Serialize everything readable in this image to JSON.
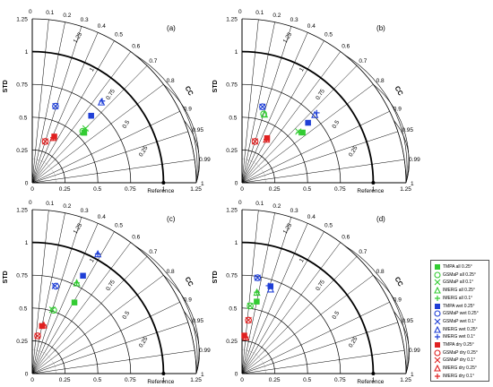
{
  "chart_data": [
    {
      "type": "scatter",
      "subtype": "taylor_diagram",
      "panel_label": "(a)",
      "ylabel": "STD",
      "angular_axis_label": "CC",
      "reference_label": "Reference",
      "points": [
        {
          "series": "TMPA all 0.25°",
          "std": 0.55,
          "cc": 0.72
        },
        {
          "series": "GSMaP all 0.25°",
          "std": 0.55,
          "cc": 0.7
        },
        {
          "series": "GSMaP all 0.1°",
          "std": 0.58,
          "cc": 0.7
        },
        {
          "series": "IMERG all 0.25°",
          "std": 0.55,
          "cc": 0.71
        },
        {
          "series": "IMERG all 0.1°",
          "std": 0.57,
          "cc": 0.71
        },
        {
          "series": "TMPA wet 0.25°",
          "std": 0.68,
          "cc": 0.66
        },
        {
          "series": "GSMaP wet 0.25°",
          "std": 0.61,
          "cc": 0.29
        },
        {
          "series": "GSMaP wet 0.1°",
          "std": 0.61,
          "cc": 0.29
        },
        {
          "series": "IMERG wet 0.25°",
          "std": 0.81,
          "cc": 0.65
        },
        {
          "series": "IMERG wet 0.1°",
          "std": 0.82,
          "cc": 0.65
        },
        {
          "series": "TMPA dry 0.25°",
          "std": 0.39,
          "cc": 0.43
        },
        {
          "series": "GSMaP dry 0.25°",
          "std": 0.33,
          "cc": 0.3
        },
        {
          "series": "GSMaP dry 0.1°",
          "std": 0.33,
          "cc": 0.3
        },
        {
          "series": "IMERG dry 0.25°",
          "std": 0.38,
          "cc": 0.42
        },
        {
          "series": "IMERG dry 0.1°",
          "std": 0.38,
          "cc": 0.42
        }
      ]
    },
    {
      "type": "scatter",
      "subtype": "taylor_diagram",
      "panel_label": "(b)",
      "ylabel": "STD",
      "angular_axis_label": "CC",
      "reference_label": "Reference",
      "points": [
        {
          "series": "TMPA all 0.25°",
          "std": 0.6,
          "cc": 0.77
        },
        {
          "series": "GSMaP all 0.25°",
          "std": 0.55,
          "cc": 0.3
        },
        {
          "series": "GSMaP all 0.1°",
          "std": 0.58,
          "cc": 0.74
        },
        {
          "series": "IMERG all 0.25°",
          "std": 0.55,
          "cc": 0.31
        },
        {
          "series": "IMERG all 0.1°",
          "std": 0.58,
          "cc": 0.75
        },
        {
          "series": "TMPA wet 0.25°",
          "std": 0.68,
          "cc": 0.74
        },
        {
          "series": "GSMaP wet 0.25°",
          "std": 0.6,
          "cc": 0.26
        },
        {
          "series": "GSMaP wet 0.1°",
          "std": 0.6,
          "cc": 0.26
        },
        {
          "series": "IMERG wet 0.25°",
          "std": 0.76,
          "cc": 0.73
        },
        {
          "series": "IMERG wet 0.1°",
          "std": 0.78,
          "cc": 0.73
        },
        {
          "series": "TMPA dry 0.25°",
          "std": 0.39,
          "cc": 0.49
        },
        {
          "series": "GSMaP dry 0.25°",
          "std": 0.33,
          "cc": 0.3
        },
        {
          "series": "GSMaP dry 0.1°",
          "std": 0.33,
          "cc": 0.3
        },
        {
          "series": "IMERG dry 0.25°",
          "std": 0.38,
          "cc": 0.49
        },
        {
          "series": "IMERG dry 0.1°",
          "std": 0.38,
          "cc": 0.49
        }
      ]
    },
    {
      "type": "scatter",
      "subtype": "taylor_diagram",
      "panel_label": "(c)",
      "ylabel": "STD",
      "angular_axis_label": "CC",
      "reference_label": "Reference",
      "points": [
        {
          "series": "TMPA all 0.25°",
          "std": 0.63,
          "cc": 0.51
        },
        {
          "series": "GSMaP all 0.25°",
          "std": 0.51,
          "cc": 0.32
        },
        {
          "series": "GSMaP all 0.1°",
          "std": 0.51,
          "cc": 0.3
        },
        {
          "series": "IMERG all 0.25°",
          "std": 0.77,
          "cc": 0.44
        },
        {
          "series": "IMERG all 0.1°",
          "std": 0.77,
          "cc": 0.44
        },
        {
          "series": "TMPA wet 0.25°",
          "std": 0.84,
          "cc": 0.46
        },
        {
          "series": "GSMaP wet 0.25°",
          "std": 0.69,
          "cc": 0.26
        },
        {
          "series": "GSMaP wet 0.1°",
          "std": 0.69,
          "cc": 0.25
        },
        {
          "series": "IMERG wet 0.25°",
          "std": 1.04,
          "cc": 0.48
        },
        {
          "series": "IMERG wet 0.1°",
          "std": 1.04,
          "cc": 0.48
        },
        {
          "series": "TMPA dry 0.25°",
          "std": 0.37,
          "cc": 0.2
        },
        {
          "series": "GSMaP dry 0.25°",
          "std": 0.29,
          "cc": 0.14
        },
        {
          "series": "GSMaP dry 0.1°",
          "std": 0.29,
          "cc": 0.14
        },
        {
          "series": "IMERG dry 0.25°",
          "std": 0.38,
          "cc": 0.23
        },
        {
          "series": "IMERG dry 0.1°",
          "std": 0.38,
          "cc": 0.23
        }
      ]
    },
    {
      "type": "scatter",
      "subtype": "taylor_diagram",
      "panel_label": "(d)",
      "ylabel": "STD",
      "angular_axis_label": "CC",
      "reference_label": "Reference",
      "points": [
        {
          "series": "TMPA all 0.25°",
          "std": 0.56,
          "cc": 0.2
        },
        {
          "series": "GSMaP all 0.25°",
          "std": 0.52,
          "cc": 0.12
        },
        {
          "series": "GSMaP all 0.1°",
          "std": 0.52,
          "cc": 0.12
        },
        {
          "series": "IMERG all 0.25°",
          "std": 0.63,
          "cc": 0.18
        },
        {
          "series": "IMERG all 0.1°",
          "std": 0.63,
          "cc": 0.18
        },
        {
          "series": "TMPA wet 0.25°",
          "std": 0.7,
          "cc": 0.31
        },
        {
          "series": "GSMaP wet 0.25°",
          "std": 0.74,
          "cc": 0.16
        },
        {
          "series": "GSMaP wet 0.1°",
          "std": 0.74,
          "cc": 0.16
        },
        {
          "series": "IMERG wet 0.25°",
          "std": 0.68,
          "cc": 0.32
        },
        {
          "series": "IMERG wet 0.1°",
          "std": 0.7,
          "cc": 0.29
        },
        {
          "series": "TMPA dry 0.25°",
          "std": 0.29,
          "cc": 0.06
        },
        {
          "series": "GSMaP dry 0.25°",
          "std": 0.41,
          "cc": 0.12
        },
        {
          "series": "GSMaP dry 0.1°",
          "std": 0.41,
          "cc": 0.12
        },
        {
          "series": "IMERG dry 0.25°",
          "std": 0.28,
          "cc": 0.1
        },
        {
          "series": "IMERG dry 0.1°",
          "std": 0.28,
          "cc": 0.1
        }
      ]
    }
  ],
  "axes": {
    "std_ticks": [
      "0",
      "0.25",
      "0.5",
      "0.75",
      "1",
      "1.25"
    ],
    "std_ticks_values": [
      0,
      0.25,
      0.5,
      0.75,
      1,
      1.25
    ],
    "cc_ticks": [
      0,
      0.1,
      0.2,
      0.3,
      0.4,
      0.5,
      0.6,
      0.7,
      0.8,
      0.9,
      0.95,
      0.99,
      1
    ],
    "crmsd_labels": [
      "0.25",
      "0.5",
      "0.75",
      "1",
      "1.25"
    ],
    "crmsd_values": [
      0.25,
      0.5,
      0.75,
      1,
      1.25
    ],
    "std_max": 1.25
  },
  "legend": {
    "items": [
      {
        "label": "TMPA all 0.25°",
        "marker": "square",
        "color": "#33cc33"
      },
      {
        "label": "GSMaP all 0.25°",
        "marker": "circle",
        "color": "#33cc33"
      },
      {
        "label": "GSMaP all 0.1°",
        "marker": "x",
        "color": "#33cc33"
      },
      {
        "label": "IMERG all 0.25°",
        "marker": "triangle",
        "color": "#33cc33"
      },
      {
        "label": "IMERG all 0.1°",
        "marker": "plus",
        "color": "#33cc33"
      },
      {
        "label": "TMPA wet 0.25°",
        "marker": "square",
        "color": "#1f3fd6"
      },
      {
        "label": "GSMaP wet 0.25°",
        "marker": "circle",
        "color": "#1f3fd6"
      },
      {
        "label": "GSMaP wet 0.1°",
        "marker": "x",
        "color": "#1f3fd6"
      },
      {
        "label": "IMERG wet 0.25°",
        "marker": "triangle",
        "color": "#1f3fd6"
      },
      {
        "label": "IMERG wet 0.1°",
        "marker": "plus",
        "color": "#1f3fd6"
      },
      {
        "label": "TMPA dry 0.25°",
        "marker": "square",
        "color": "#e02020"
      },
      {
        "label": "GSMaP dry 0.25°",
        "marker": "circle",
        "color": "#e02020"
      },
      {
        "label": "GSMaP dry 0.1°",
        "marker": "x",
        "color": "#e02020"
      },
      {
        "label": "IMERG dry 0.25°",
        "marker": "triangle",
        "color": "#e02020"
      },
      {
        "label": "IMERG dry 0.1°",
        "marker": "plus",
        "color": "#e02020"
      }
    ]
  }
}
